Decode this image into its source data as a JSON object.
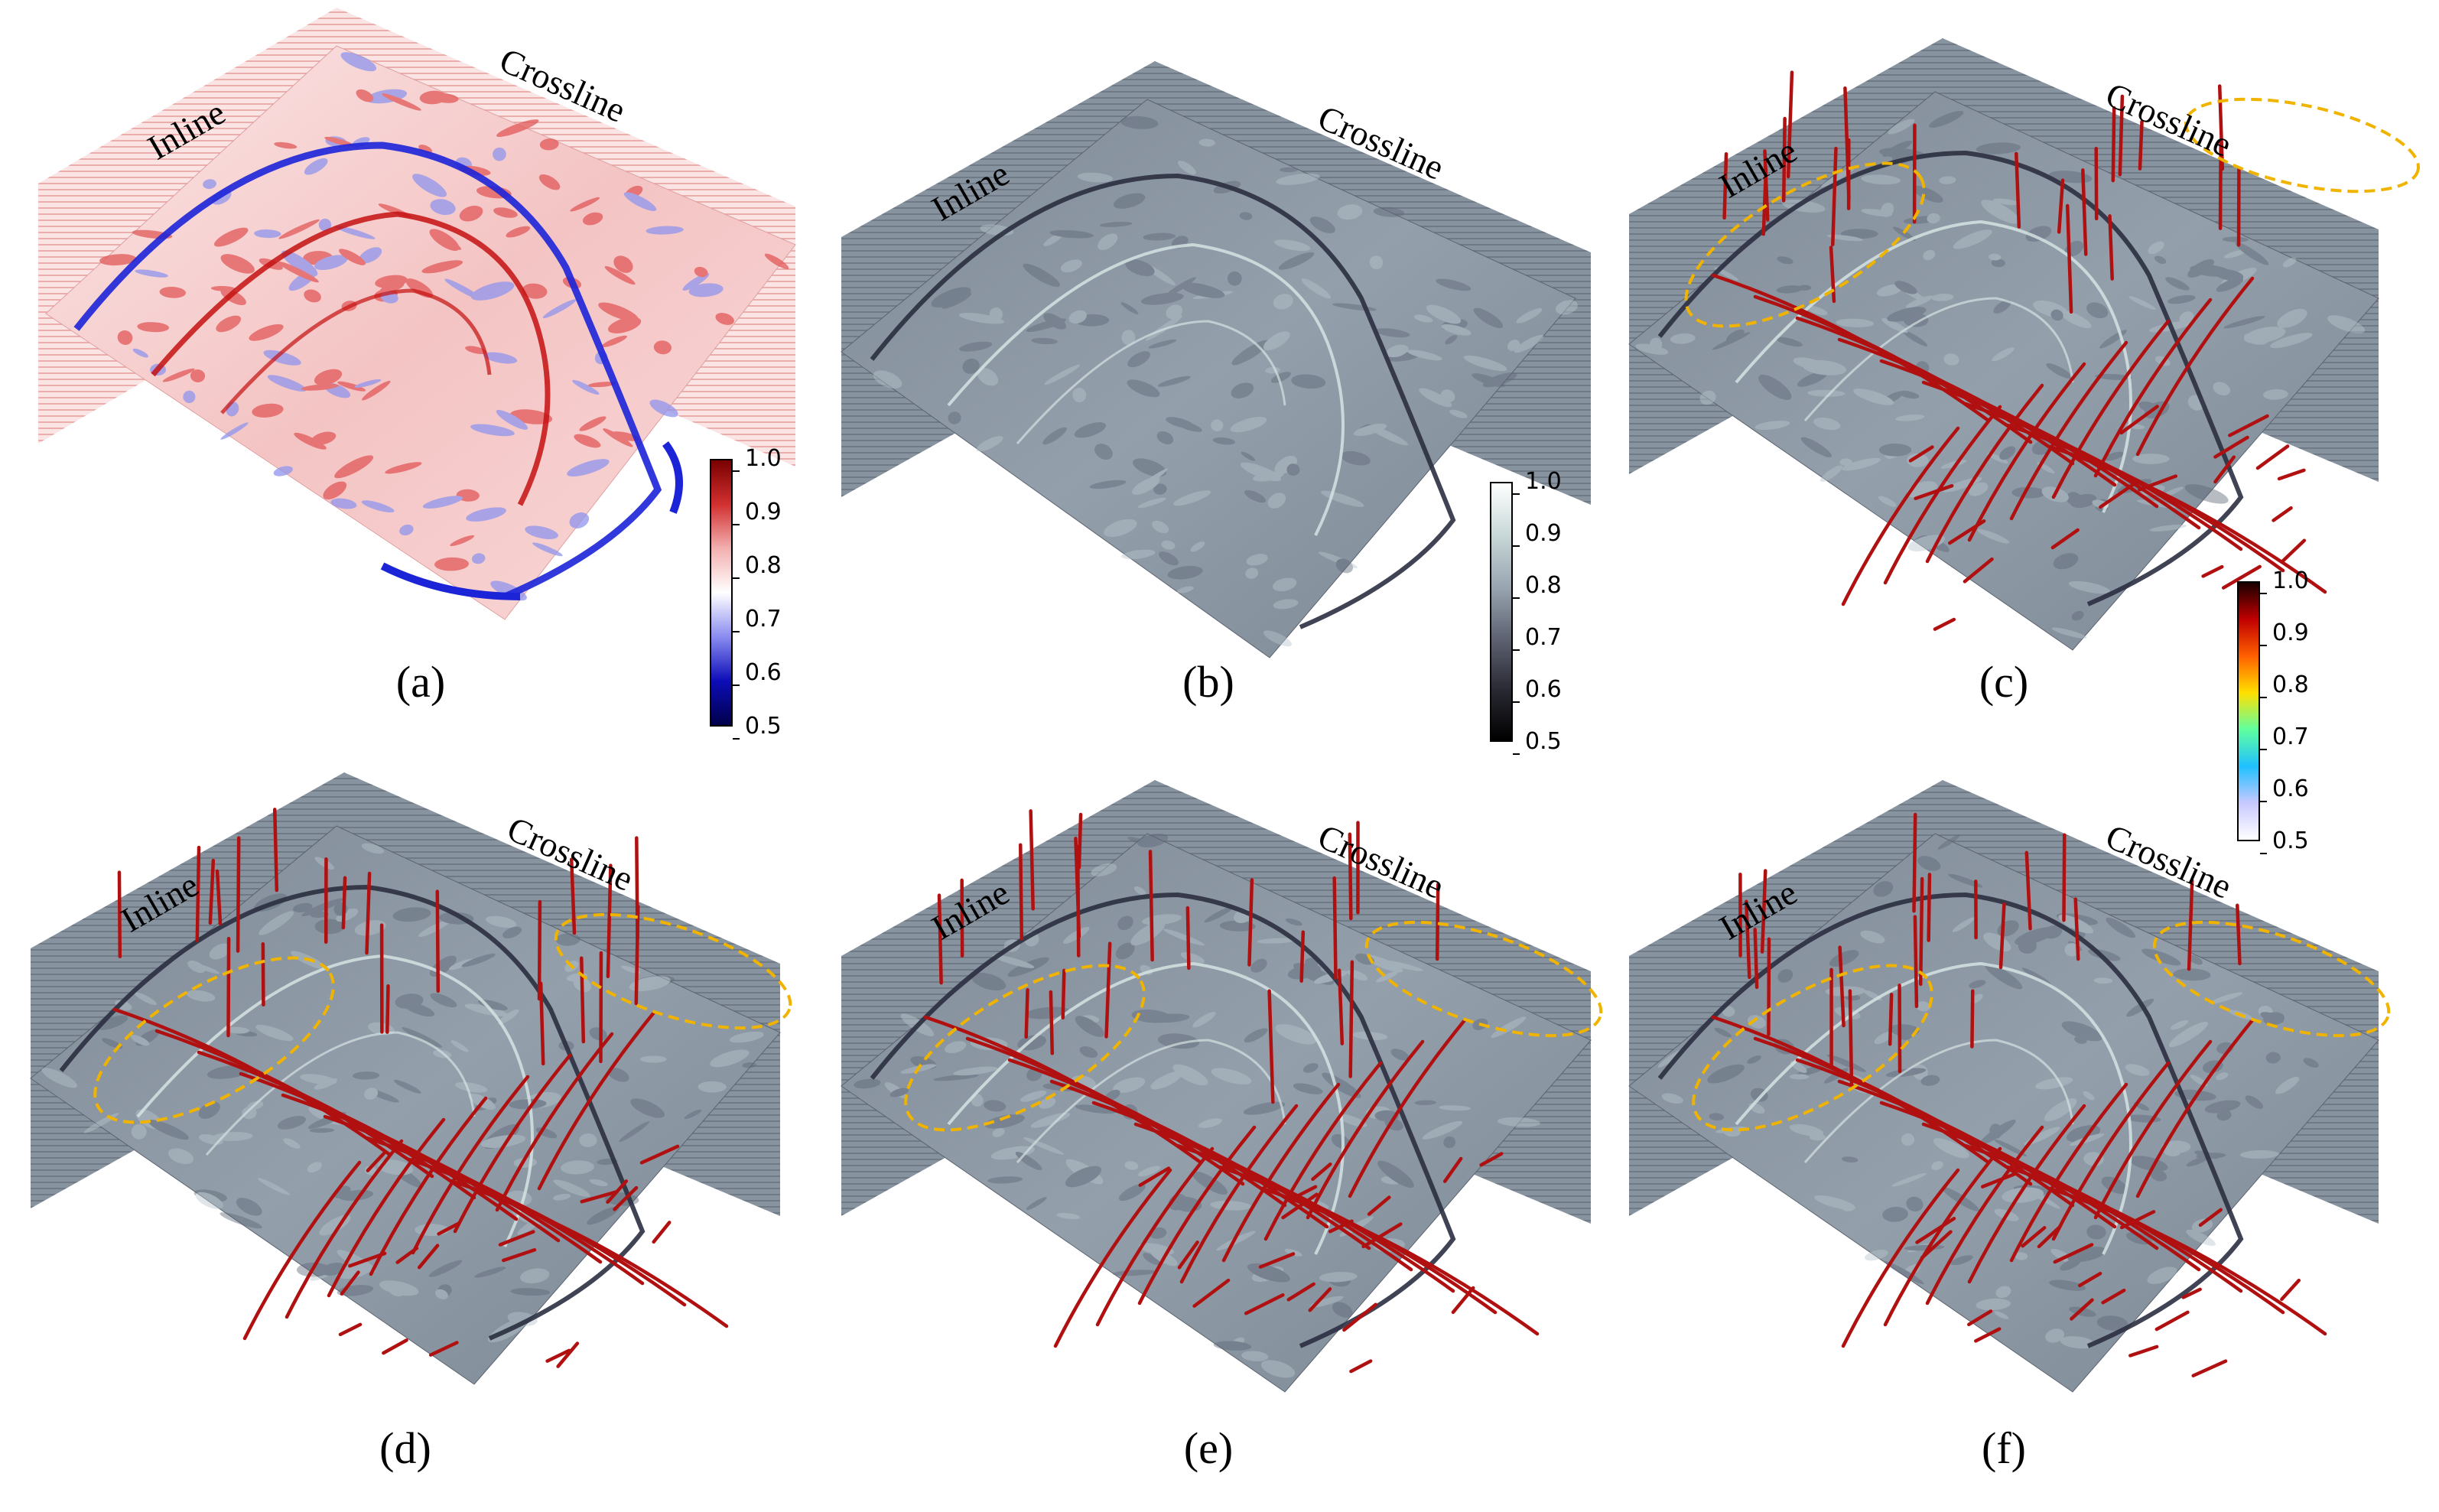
{
  "panels": [
    {
      "id": "a",
      "caption": "(a)",
      "inline_label": "Inline",
      "crossline_label": "Crossline",
      "style": "seismic-redblue",
      "faults": false,
      "ellipses": false
    },
    {
      "id": "b",
      "caption": "(b)",
      "inline_label": "Inline",
      "crossline_label": "Crossline",
      "style": "gray",
      "faults": false,
      "ellipses": false
    },
    {
      "id": "c",
      "caption": "(c)",
      "inline_label": "Inline",
      "crossline_label": "Crossline",
      "style": "gray",
      "faults": true,
      "ellipses": true
    },
    {
      "id": "d",
      "caption": "(d)",
      "inline_label": "Inline",
      "crossline_label": "Crossline",
      "style": "gray",
      "faults": true,
      "ellipses": true
    },
    {
      "id": "e",
      "caption": "(e)",
      "inline_label": "Inline",
      "crossline_label": "Crossline",
      "style": "gray",
      "faults": true,
      "ellipses": true
    },
    {
      "id": "f",
      "caption": "(f)",
      "inline_label": "Inline",
      "crossline_label": "Crossline",
      "style": "gray",
      "faults": true,
      "ellipses": true
    }
  ],
  "colorbars": [
    {
      "id": "seismic",
      "colormap": "seismic (blue-white-red)",
      "ticks": [
        "1.0",
        "0.9",
        "0.8",
        "0.7",
        "0.6",
        "0.5"
      ],
      "colors": [
        "#7a0000",
        "#d23030",
        "#f3b0b0",
        "#ffffff",
        "#8a8cf0",
        "#0d0db8",
        "#00004a"
      ]
    },
    {
      "id": "gray",
      "colormap": "bone (gray)",
      "ticks": [
        "1.0",
        "0.9",
        "0.8",
        "0.7",
        "0.6",
        "0.5"
      ],
      "colors": [
        "#ffffff",
        "#c9d8d8",
        "#9aa6b2",
        "#5f6373",
        "#2a2a34",
        "#000000"
      ]
    },
    {
      "id": "fault",
      "colormap": "jet-like",
      "ticks": [
        "1.0",
        "0.9",
        "0.8",
        "0.7",
        "0.6",
        "0.5"
      ],
      "colors": [
        "#1a0000",
        "#c00000",
        "#ff6000",
        "#ffe000",
        "#60ffa0",
        "#20c0ff",
        "#c8c8ff",
        "#ffffff"
      ]
    }
  ],
  "colors": {
    "ellipse": "#f0b400",
    "fault": "#b01010",
    "seismic_base": "#f6dcdc",
    "gray_base": "#8d99a4"
  }
}
